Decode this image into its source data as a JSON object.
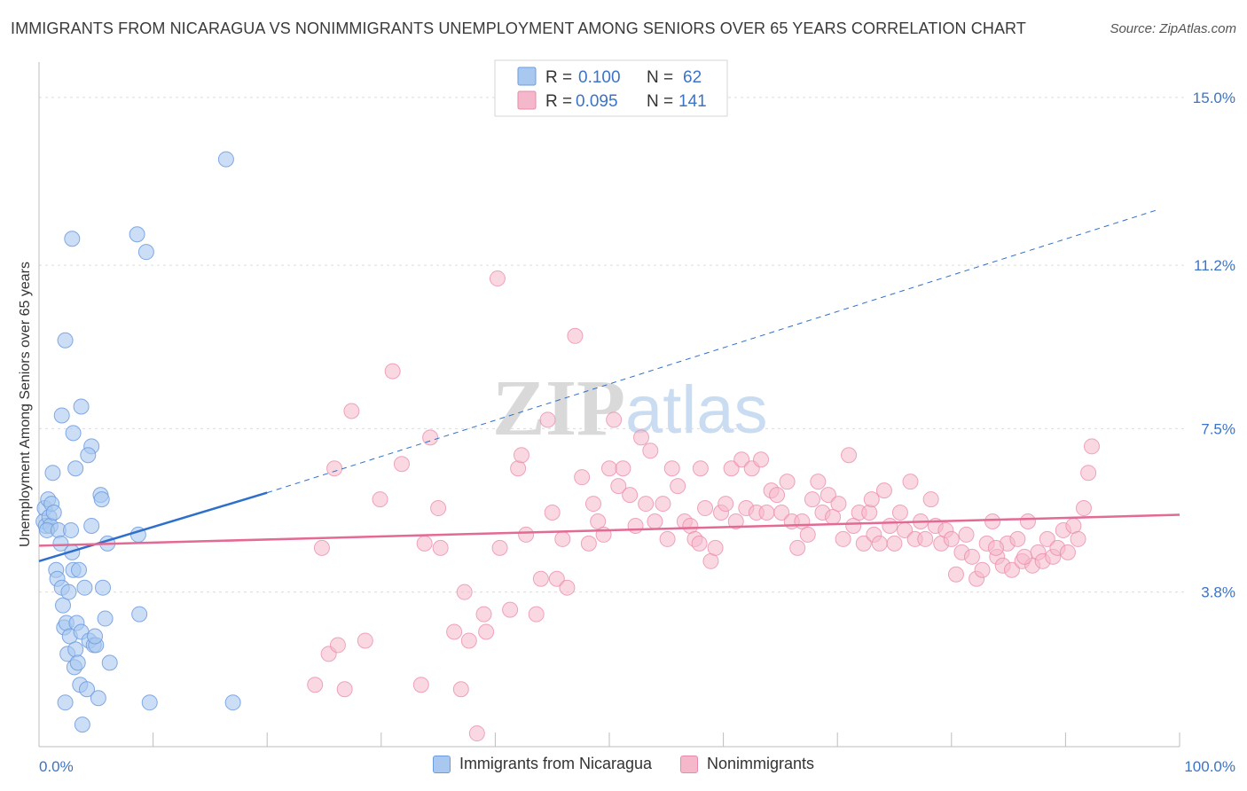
{
  "header": {
    "title": "IMMIGRANTS FROM NICARAGUA VS NONIMMIGRANTS UNEMPLOYMENT AMONG SENIORS OVER 65 YEARS CORRELATION CHART",
    "source": "Source: ZipAtlas.com"
  },
  "watermark": {
    "zip": "ZIP",
    "atlas": "atlas"
  },
  "colors": {
    "blue_fill": "#a9c8ef",
    "blue_stroke": "#6d9be0",
    "blue_line": "#2f6fcc",
    "pink_fill": "#f5b8cb",
    "pink_stroke": "#e98aa8",
    "pink_line": "#e36a94",
    "tick_text": "#3b73c8",
    "grid": "#dcdcdc"
  },
  "legend": {
    "rows": [
      {
        "r_label": "R =",
        "r_value": "0.100",
        "n_label": "N =",
        "n_value": "62"
      },
      {
        "r_label": "R =",
        "r_value": "0.095",
        "n_label": "N =",
        "n_value": "141"
      }
    ]
  },
  "bottom_legend": {
    "series1": "Immigrants from Nicaragua",
    "series2": "Nonimmigrants"
  },
  "chart_data": {
    "type": "scatter",
    "title": "IMMIGRANTS FROM NICARAGUA VS NONIMMIGRANTS UNEMPLOYMENT AMONG SENIORS OVER 65 YEARS CORRELATION CHART",
    "xlabel": "",
    "ylabel": "Unemployment Among Seniors over 65 years",
    "xlim": [
      0,
      100
    ],
    "ylim": [
      0.3,
      15.8
    ],
    "x_tick_labels": [
      "0.0%",
      "100.0%"
    ],
    "y_ticks": [
      3.8,
      7.5,
      11.2,
      15.0
    ],
    "y_tick_labels": [
      "3.8%",
      "7.5%",
      "11.2%",
      "15.0%"
    ],
    "grid": true,
    "series": [
      {
        "name": "Immigrants from Nicaragua",
        "r": 0.1,
        "n": 62,
        "trend": {
          "x0": 0,
          "y0": 4.5,
          "x1": 20,
          "y1": 6.05,
          "dashed_to_x": 98,
          "dashed_to_y": 12.45
        },
        "points": [
          [
            0.4,
            5.4
          ],
          [
            0.5,
            5.7
          ],
          [
            0.6,
            5.3
          ],
          [
            0.8,
            5.9
          ],
          [
            0.9,
            5.5
          ],
          [
            1.0,
            5.3
          ],
          [
            1.1,
            5.8
          ],
          [
            1.2,
            6.5
          ],
          [
            1.3,
            5.6
          ],
          [
            0.7,
            5.2
          ],
          [
            1.5,
            4.3
          ],
          [
            1.6,
            4.1
          ],
          [
            1.7,
            5.2
          ],
          [
            1.9,
            4.9
          ],
          [
            2.0,
            3.9
          ],
          [
            2.1,
            3.5
          ],
          [
            2.2,
            3.0
          ],
          [
            2.3,
            1.3
          ],
          [
            2.4,
            3.1
          ],
          [
            2.5,
            2.4
          ],
          [
            2.6,
            3.8
          ],
          [
            2.7,
            2.8
          ],
          [
            2.8,
            5.2
          ],
          [
            2.9,
            4.7
          ],
          [
            3.0,
            4.3
          ],
          [
            3.1,
            2.1
          ],
          [
            3.2,
            2.5
          ],
          [
            3.3,
            3.1
          ],
          [
            3.4,
            2.2
          ],
          [
            3.5,
            4.3
          ],
          [
            3.6,
            1.7
          ],
          [
            3.7,
            2.9
          ],
          [
            3.8,
            0.8
          ],
          [
            4.0,
            3.9
          ],
          [
            4.2,
            1.6
          ],
          [
            4.4,
            2.7
          ],
          [
            4.6,
            7.1
          ],
          [
            4.8,
            2.6
          ],
          [
            5.0,
            2.6
          ],
          [
            5.2,
            1.4
          ],
          [
            5.4,
            6.0
          ],
          [
            5.6,
            3.9
          ],
          [
            5.8,
            3.2
          ],
          [
            6.0,
            4.9
          ],
          [
            6.2,
            2.2
          ],
          [
            2.0,
            7.8
          ],
          [
            2.3,
            9.5
          ],
          [
            2.9,
            11.8
          ],
          [
            3.0,
            7.4
          ],
          [
            3.2,
            6.6
          ],
          [
            3.7,
            8.0
          ],
          [
            4.3,
            6.9
          ],
          [
            4.6,
            5.3
          ],
          [
            4.9,
            2.8
          ],
          [
            5.5,
            5.9
          ],
          [
            8.8,
            3.3
          ],
          [
            8.7,
            5.1
          ],
          [
            8.6,
            11.9
          ],
          [
            9.4,
            11.5
          ],
          [
            9.7,
            1.3
          ],
          [
            16.4,
            13.6
          ],
          [
            17.0,
            1.3
          ]
        ]
      },
      {
        "name": "Nonimmigrants",
        "r": 0.095,
        "n": 141,
        "trend": {
          "x0": 0,
          "y0": 4.85,
          "x1": 100,
          "y1": 5.55
        },
        "points": [
          [
            24.2,
            1.7
          ],
          [
            24.8,
            4.8
          ],
          [
            25.4,
            2.4
          ],
          [
            25.9,
            6.6
          ],
          [
            26.2,
            2.6
          ],
          [
            26.8,
            1.6
          ],
          [
            27.4,
            7.9
          ],
          [
            28.6,
            2.7
          ],
          [
            29.9,
            5.9
          ],
          [
            31.0,
            8.8
          ],
          [
            31.8,
            6.7
          ],
          [
            33.5,
            1.7
          ],
          [
            33.8,
            4.9
          ],
          [
            34.3,
            7.3
          ],
          [
            35.0,
            5.7
          ],
          [
            35.2,
            4.8
          ],
          [
            36.4,
            2.9
          ],
          [
            37.0,
            1.6
          ],
          [
            37.3,
            3.8
          ],
          [
            37.7,
            2.7
          ],
          [
            38.4,
            0.6
          ],
          [
            39.0,
            3.3
          ],
          [
            39.2,
            2.9
          ],
          [
            40.2,
            10.9
          ],
          [
            40.4,
            4.8
          ],
          [
            41.3,
            3.4
          ],
          [
            42.0,
            6.6
          ],
          [
            42.3,
            6.9
          ],
          [
            42.7,
            5.1
          ],
          [
            43.6,
            3.3
          ],
          [
            44.0,
            4.1
          ],
          [
            44.6,
            7.7
          ],
          [
            45.0,
            5.6
          ],
          [
            45.4,
            4.1
          ],
          [
            45.9,
            5.0
          ],
          [
            46.3,
            3.9
          ],
          [
            47.0,
            9.6
          ],
          [
            47.6,
            6.4
          ],
          [
            48.2,
            4.9
          ],
          [
            48.6,
            5.8
          ],
          [
            49.0,
            5.4
          ],
          [
            49.5,
            5.1
          ],
          [
            50.0,
            6.6
          ],
          [
            50.4,
            7.7
          ],
          [
            50.8,
            6.2
          ],
          [
            51.2,
            6.6
          ],
          [
            51.8,
            6.0
          ],
          [
            52.3,
            5.3
          ],
          [
            52.8,
            7.3
          ],
          [
            53.2,
            5.8
          ],
          [
            53.6,
            7.0
          ],
          [
            54.0,
            5.4
          ],
          [
            54.7,
            5.8
          ],
          [
            55.1,
            5.0
          ],
          [
            55.5,
            6.6
          ],
          [
            56.0,
            6.2
          ],
          [
            56.6,
            5.4
          ],
          [
            57.1,
            5.3
          ],
          [
            57.5,
            5.0
          ],
          [
            58.0,
            6.6
          ],
          [
            58.4,
            5.7
          ],
          [
            58.9,
            4.5
          ],
          [
            59.3,
            4.8
          ],
          [
            59.8,
            5.6
          ],
          [
            60.2,
            5.8
          ],
          [
            60.7,
            6.6
          ],
          [
            61.1,
            5.4
          ],
          [
            61.6,
            6.8
          ],
          [
            62.0,
            5.7
          ],
          [
            62.5,
            6.6
          ],
          [
            62.9,
            5.6
          ],
          [
            63.3,
            6.8
          ],
          [
            63.8,
            5.6
          ],
          [
            64.2,
            6.1
          ],
          [
            64.7,
            6.0
          ],
          [
            65.1,
            5.6
          ],
          [
            65.6,
            6.3
          ],
          [
            66.0,
            5.4
          ],
          [
            66.5,
            4.8
          ],
          [
            66.9,
            5.4
          ],
          [
            67.4,
            5.1
          ],
          [
            67.8,
            5.9
          ],
          [
            68.3,
            6.3
          ],
          [
            68.7,
            5.6
          ],
          [
            69.2,
            6.0
          ],
          [
            69.6,
            5.5
          ],
          [
            70.1,
            5.8
          ],
          [
            70.5,
            5.0
          ],
          [
            71.0,
            6.9
          ],
          [
            71.4,
            5.3
          ],
          [
            71.9,
            5.6
          ],
          [
            72.3,
            4.9
          ],
          [
            72.8,
            5.6
          ],
          [
            73.2,
            5.1
          ],
          [
            73.7,
            4.9
          ],
          [
            74.1,
            6.1
          ],
          [
            74.6,
            5.3
          ],
          [
            75.0,
            4.9
          ],
          [
            75.5,
            5.6
          ],
          [
            75.9,
            5.2
          ],
          [
            76.4,
            6.3
          ],
          [
            76.8,
            5.0
          ],
          [
            77.3,
            5.4
          ],
          [
            77.7,
            5.0
          ],
          [
            78.2,
            5.9
          ],
          [
            78.6,
            5.3
          ],
          [
            79.1,
            4.9
          ],
          [
            79.5,
            5.2
          ],
          [
            80.0,
            5.0
          ],
          [
            80.4,
            4.2
          ],
          [
            80.9,
            4.7
          ],
          [
            81.3,
            5.1
          ],
          [
            81.8,
            4.6
          ],
          [
            82.2,
            4.1
          ],
          [
            82.7,
            4.3
          ],
          [
            83.1,
            4.9
          ],
          [
            83.6,
            5.4
          ],
          [
            84.0,
            4.6
          ],
          [
            84.5,
            4.4
          ],
          [
            84.9,
            4.9
          ],
          [
            85.3,
            4.3
          ],
          [
            85.8,
            5.0
          ],
          [
            86.2,
            4.5
          ],
          [
            86.7,
            5.4
          ],
          [
            87.1,
            4.4
          ],
          [
            87.6,
            4.7
          ],
          [
            88.0,
            4.5
          ],
          [
            88.4,
            5.0
          ],
          [
            88.9,
            4.6
          ],
          [
            89.3,
            4.8
          ],
          [
            89.8,
            5.2
          ],
          [
            90.2,
            4.7
          ],
          [
            90.7,
            5.3
          ],
          [
            91.1,
            5.0
          ],
          [
            91.6,
            5.7
          ],
          [
            92.0,
            6.5
          ],
          [
            92.3,
            7.1
          ],
          [
            86.4,
            4.6
          ],
          [
            83.9,
            4.8
          ],
          [
            73.0,
            5.9
          ],
          [
            57.9,
            4.9
          ]
        ]
      }
    ]
  }
}
